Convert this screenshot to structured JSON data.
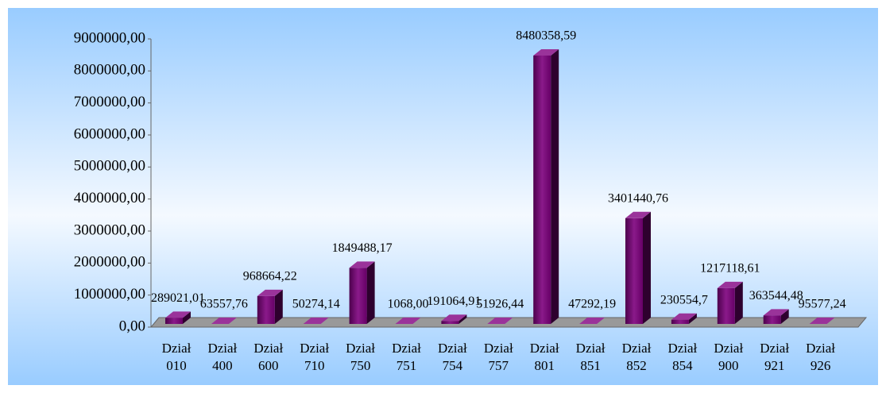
{
  "chart_data": {
    "type": "bar3d",
    "categories": [
      "Dział 010",
      "Dział 400",
      "Dział 600",
      "Dział 710",
      "Dział 750",
      "Dział 751",
      "Dział 754",
      "Dział 757",
      "Dział 801",
      "Dział 851",
      "Dział 852",
      "Dział 854",
      "Dział 900",
      "Dział 921",
      "Dział 926"
    ],
    "values": [
      289021.01,
      63557.76,
      968664.22,
      50274.14,
      1849488.17,
      1068.0,
      191064.91,
      51926.44,
      8480358.59,
      47292.19,
      3401440.76,
      230554.7,
      1217118.61,
      363544.48,
      95577.24
    ],
    "value_labels": [
      "289021,01",
      "63557,76",
      "968664,22",
      "50274,14",
      "1849488,17",
      "1068,00",
      "191064,91",
      "51926,44",
      "8480358,59",
      "47292,19",
      "3401440,76",
      "230554,7",
      "1217118,61",
      "363544,48",
      "95577,24"
    ],
    "color": "#660066",
    "ylim": [
      0,
      9000000
    ],
    "yticks": [
      {
        "value": 0,
        "label": "0,00"
      },
      {
        "value": 1000000,
        "label": "1000000,00"
      },
      {
        "value": 2000000,
        "label": "2000000,00"
      },
      {
        "value": 3000000,
        "label": "3000000,00"
      },
      {
        "value": 4000000,
        "label": "4000000,00"
      },
      {
        "value": 5000000,
        "label": "5000000,00"
      },
      {
        "value": 6000000,
        "label": "6000000,00"
      },
      {
        "value": 7000000,
        "label": "7000000,00"
      },
      {
        "value": 8000000,
        "label": "8000000,00"
      },
      {
        "value": 9000000,
        "label": "9000000,00"
      }
    ],
    "grid": false
  }
}
